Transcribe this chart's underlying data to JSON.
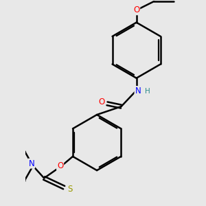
{
  "background_color": "#e8e8e8",
  "line_color": "#000000",
  "bond_width": 1.8,
  "atom_colors": {
    "O": "#ff0000",
    "N": "#0000ff",
    "S": "#999900",
    "H": "#2a8a8a"
  },
  "font_size": 8.5,
  "figsize": [
    3.0,
    3.0
  ],
  "dpi": 100
}
